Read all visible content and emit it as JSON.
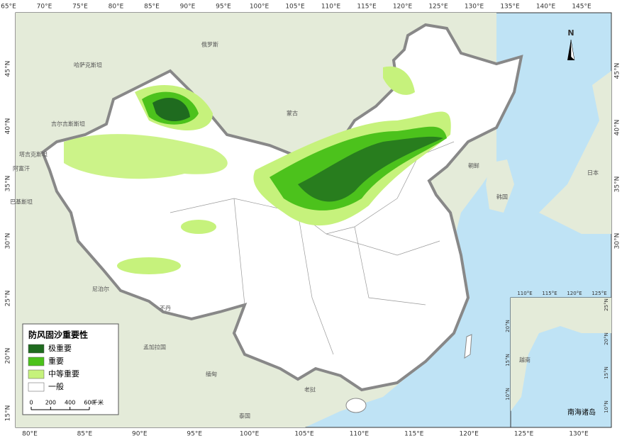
{
  "graticule": {
    "top": [
      "65°E",
      "70°E",
      "75°E",
      "80°E",
      "85°E",
      "90°E",
      "95°E",
      "100°E",
      "105°E",
      "110°E",
      "115°E",
      "120°E",
      "125°E",
      "130°E",
      "135°E",
      "140°E",
      "145°E"
    ],
    "bottom": [
      "80°E",
      "85°E",
      "90°E",
      "95°E",
      "100°E",
      "105°E",
      "110°E",
      "115°E",
      "120°E",
      "125°E",
      "130°E"
    ],
    "left": [
      "45°N",
      "40°N",
      "35°N",
      "30°N",
      "25°N",
      "20°N",
      "15°N"
    ],
    "right": [
      "45°N",
      "40°N",
      "35°N",
      "30°N"
    ]
  },
  "inset": {
    "title": "南海诸岛",
    "top": [
      "110°E",
      "115°E",
      "120°E",
      "125°E"
    ],
    "right": [
      "25°N",
      "20°N",
      "15°N",
      "10°N"
    ],
    "left": [
      "20°N",
      "15°N",
      "10°N"
    ]
  },
  "places": [
    "俄罗斯",
    "哈萨克斯坦",
    "吉尔吉斯斯坦",
    "塔吉克斯坦",
    "阿富汗",
    "巴基斯坦",
    "尼泊尔",
    "不丹",
    "孟加拉国",
    "缅甸",
    "老挝",
    "泰国",
    "越南",
    "蒙古",
    "朝鲜",
    "韩国",
    "日本"
  ],
  "legend": {
    "title": "防风固沙重要性",
    "items": [
      {
        "label": "极重要",
        "color": "#1f6b1f"
      },
      {
        "label": "重要",
        "color": "#4cc21c"
      },
      {
        "label": "中等重要",
        "color": "#c6f27c"
      },
      {
        "label": "一般",
        "color": "#ffffff"
      }
    ]
  },
  "scale_bar": {
    "ticks": [
      0,
      200,
      400,
      600
    ],
    "unit": "千米"
  },
  "north_arrow": "N"
}
